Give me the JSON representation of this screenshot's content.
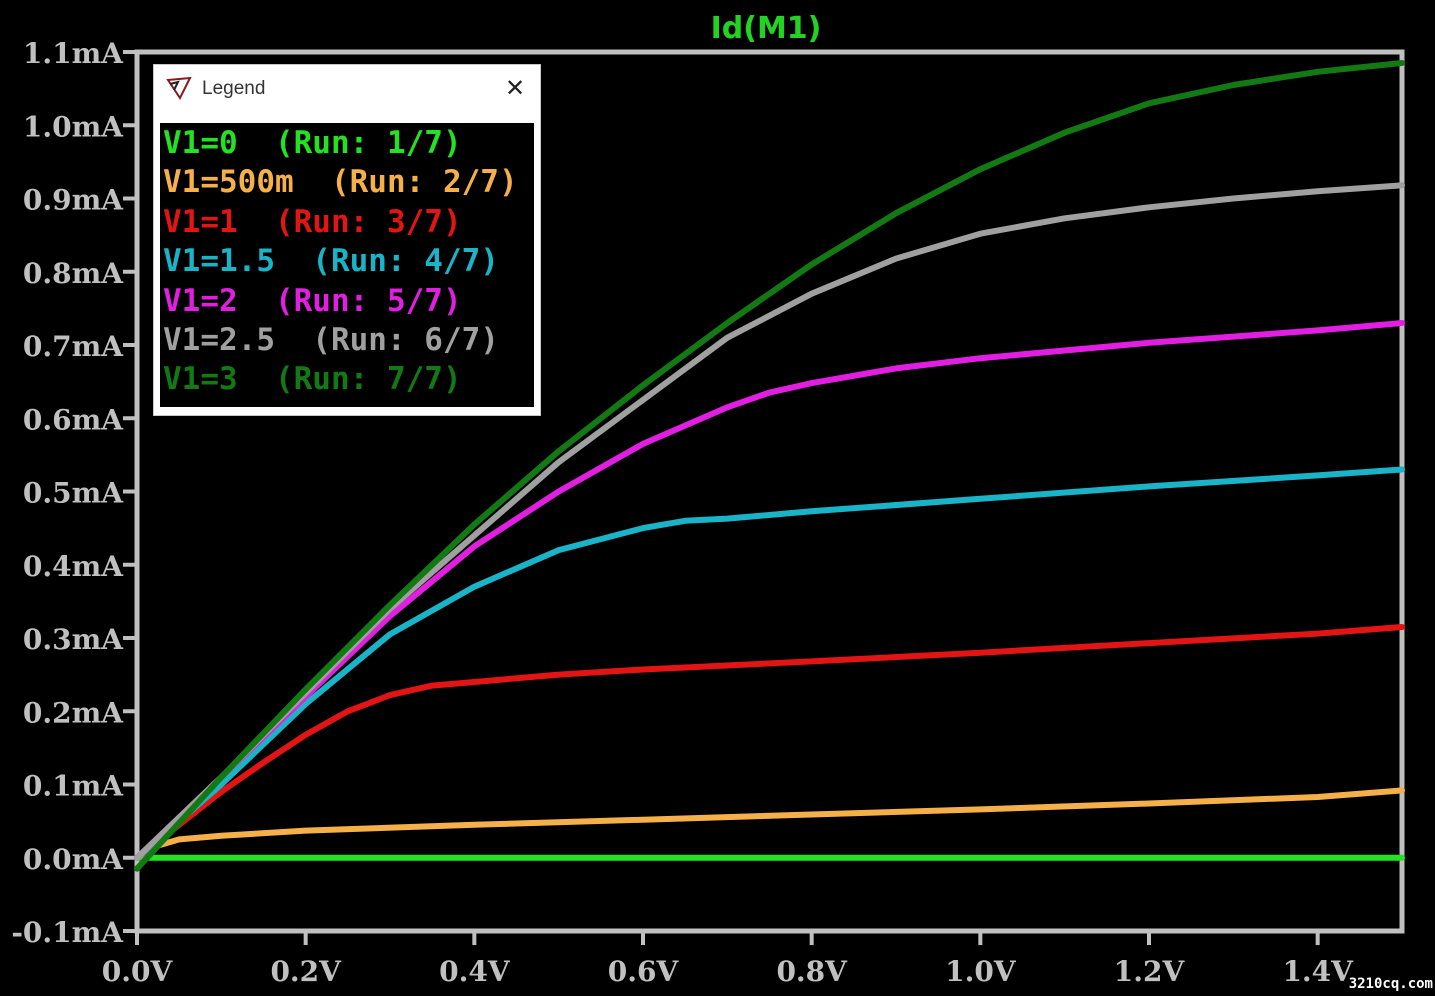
{
  "chart_data": {
    "type": "line",
    "title": "Id(M1)",
    "title_color": "#22d422",
    "background": "#000000",
    "frame_color": "#c0c0c0",
    "xlabel": "",
    "ylabel": "",
    "xlim": [
      0,
      1.5
    ],
    "ylim": [
      -0.1,
      1.1
    ],
    "xticks": [
      0,
      0.2,
      0.4,
      0.6,
      0.8,
      1.0,
      1.2,
      1.4
    ],
    "xtick_labels": [
      "0.0V",
      "0.2V",
      "0.4V",
      "0.6V",
      "0.8V",
      "1.0V",
      "1.2V",
      "1.4V"
    ],
    "yticks": [
      1.1,
      1.0,
      0.9,
      0.8,
      0.7,
      0.6,
      0.5,
      0.4,
      0.3,
      0.2,
      0.1,
      0.0,
      -0.1
    ],
    "ytick_labels": [
      "1.1mA",
      "1.0mA",
      "0.9mA",
      "0.8mA",
      "0.7mA",
      "0.6mA",
      "0.5mA",
      "0.4mA",
      "0.3mA",
      "0.2mA",
      "0.1mA",
      "0.0mA",
      "-0.1mA"
    ],
    "grid": false,
    "legend_position": "top-left",
    "series": [
      {
        "name": "V1=0",
        "run": "(Run: 1/7)",
        "color": "#22e222",
        "x": [
          0,
          0.1,
          0.2,
          0.4,
          0.6,
          0.8,
          1.0,
          1.2,
          1.4,
          1.5
        ],
        "y": [
          0,
          0,
          0,
          0,
          0,
          0,
          0,
          0,
          0,
          0
        ]
      },
      {
        "name": "V1=500m",
        "run": "(Run: 2/7)",
        "color": "#f5b04a",
        "x": [
          0,
          0.02,
          0.05,
          0.1,
          0.2,
          0.4,
          0.6,
          0.8,
          1.0,
          1.2,
          1.4,
          1.5
        ],
        "y": [
          0,
          0.015,
          0.025,
          0.03,
          0.037,
          0.045,
          0.052,
          0.059,
          0.066,
          0.074,
          0.083,
          0.092
        ]
      },
      {
        "name": "V1=1",
        "run": "(Run: 3/7)",
        "color": "#e21414",
        "x": [
          0,
          0.05,
          0.1,
          0.15,
          0.2,
          0.25,
          0.3,
          0.35,
          0.4,
          0.5,
          0.6,
          0.8,
          1.0,
          1.2,
          1.4,
          1.5
        ],
        "y": [
          0,
          0.045,
          0.09,
          0.13,
          0.168,
          0.2,
          0.222,
          0.235,
          0.24,
          0.25,
          0.257,
          0.268,
          0.28,
          0.293,
          0.306,
          0.315
        ]
      },
      {
        "name": "V1=1.5",
        "run": "(Run: 4/7)",
        "color": "#1ab4c8",
        "x": [
          0,
          0.1,
          0.2,
          0.3,
          0.4,
          0.5,
          0.6,
          0.65,
          0.7,
          0.8,
          1.0,
          1.2,
          1.4,
          1.5
        ],
        "y": [
          0,
          0.1,
          0.21,
          0.305,
          0.37,
          0.42,
          0.45,
          0.46,
          0.463,
          0.473,
          0.49,
          0.507,
          0.522,
          0.53
        ]
      },
      {
        "name": "V1=2",
        "run": "(Run: 5/7)",
        "color": "#e21ee2",
        "x": [
          0,
          0.1,
          0.2,
          0.3,
          0.4,
          0.5,
          0.6,
          0.7,
          0.75,
          0.8,
          0.9,
          1.0,
          1.2,
          1.4,
          1.5
        ],
        "y": [
          0,
          0.11,
          0.22,
          0.33,
          0.425,
          0.5,
          0.565,
          0.615,
          0.635,
          0.648,
          0.668,
          0.682,
          0.703,
          0.72,
          0.73
        ]
      },
      {
        "name": "V1=2.5",
        "run": "(Run: 6/7)",
        "color": "#a0a0a0",
        "x": [
          0,
          0.1,
          0.2,
          0.3,
          0.4,
          0.5,
          0.6,
          0.7,
          0.8,
          0.9,
          1.0,
          1.1,
          1.2,
          1.3,
          1.4,
          1.5
        ],
        "y": [
          0,
          0.11,
          0.225,
          0.34,
          0.44,
          0.54,
          0.625,
          0.71,
          0.77,
          0.818,
          0.852,
          0.873,
          0.888,
          0.9,
          0.91,
          0.918
        ]
      },
      {
        "name": "V1=3",
        "run": "(Run: 7/7)",
        "color": "#137a13",
        "x": [
          0,
          0.1,
          0.2,
          0.3,
          0.4,
          0.5,
          0.6,
          0.7,
          0.8,
          0.9,
          1.0,
          1.1,
          1.2,
          1.3,
          1.4,
          1.5
        ],
        "y": [
          -0.015,
          0.11,
          0.23,
          0.345,
          0.455,
          0.555,
          0.645,
          0.73,
          0.81,
          0.88,
          0.94,
          0.99,
          1.03,
          1.055,
          1.073,
          1.085
        ]
      }
    ]
  },
  "legend": {
    "title": "Legend",
    "close_symbol": "✕",
    "icon": "ltspice-logo-icon"
  },
  "watermark": "3210cq.com"
}
